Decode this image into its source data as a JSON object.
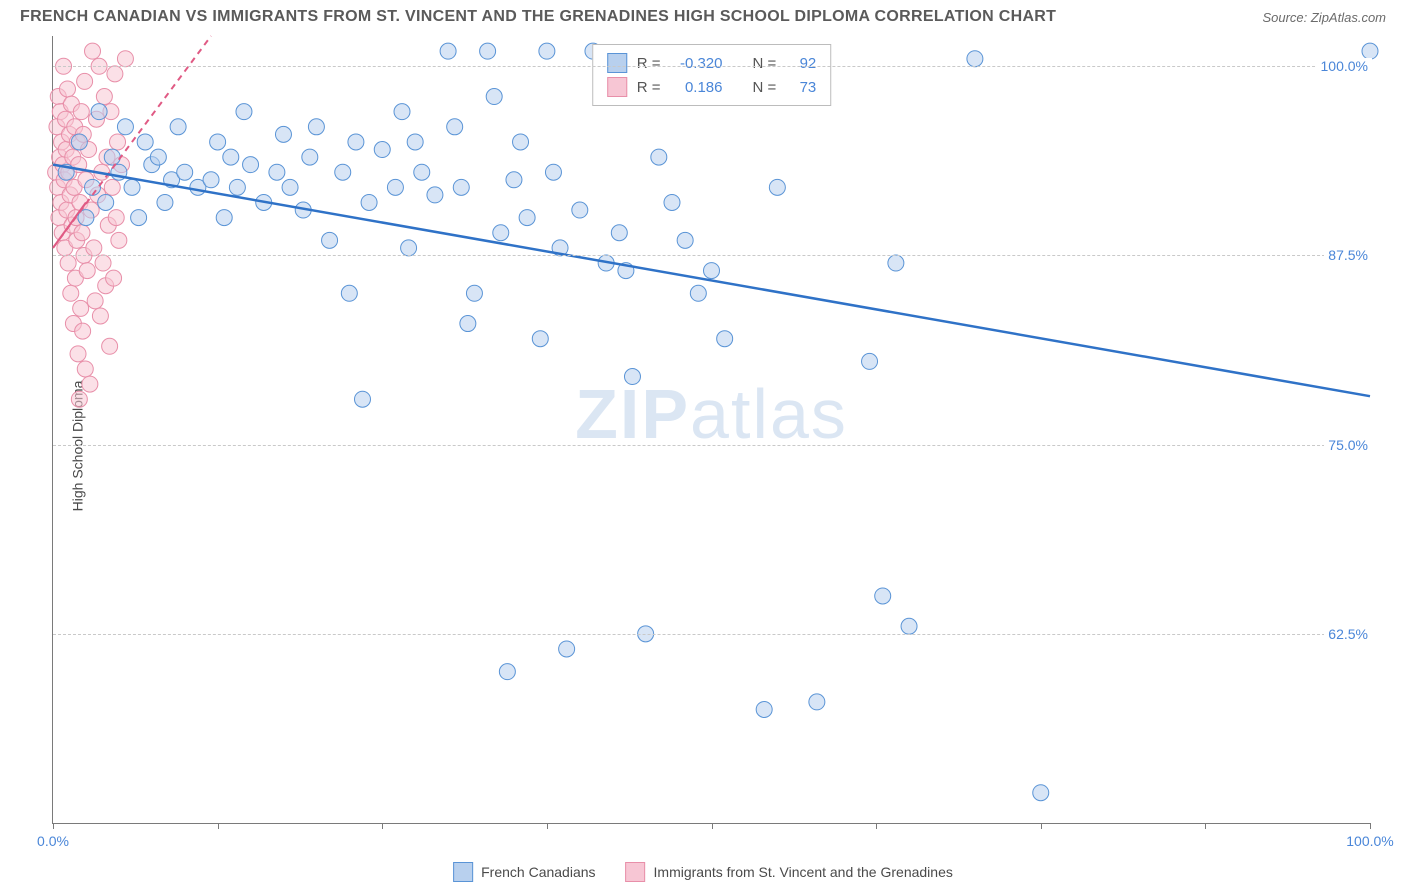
{
  "title": "FRENCH CANADIAN VS IMMIGRANTS FROM ST. VINCENT AND THE GRENADINES HIGH SCHOOL DIPLOMA CORRELATION CHART",
  "source": "Source: ZipAtlas.com",
  "y_axis_label": "High School Diploma",
  "watermark": {
    "bold": "ZIP",
    "rest": "atlas"
  },
  "colors": {
    "blue_fill": "#b8d0ee",
    "blue_stroke": "#5a94d6",
    "blue_line": "#2f72c7",
    "pink_fill": "#f7c6d4",
    "pink_stroke": "#e88fa9",
    "pink_line": "#e05a84",
    "grid": "#c9c9c9",
    "axis": "#7a7a7a",
    "tick_text": "#4a86d8",
    "title_text": "#5a5a5a",
    "watermark_color": "#dbe6f3"
  },
  "plot": {
    "xlim": [
      0,
      100
    ],
    "ylim": [
      50,
      102
    ],
    "y_gridlines": [
      62.5,
      75.0,
      87.5,
      100.0
    ],
    "y_tick_labels": [
      "62.5%",
      "75.0%",
      "87.5%",
      "100.0%"
    ],
    "x_ticks": [
      0,
      12.5,
      25,
      37.5,
      50,
      62.5,
      75,
      87.5,
      100
    ],
    "x_tick_labels": {
      "0": "0.0%",
      "100": "100.0%"
    },
    "marker_radius": 8,
    "marker_opacity": 0.55,
    "line_width_blue": 2.5,
    "line_width_pink": 2.0
  },
  "stats_legend": {
    "rows": [
      {
        "color": "blue",
        "r_label": "R =",
        "r_val": "-0.320",
        "n_label": "N =",
        "n_val": "92"
      },
      {
        "color": "pink",
        "r_label": "R =",
        "r_val": "0.186",
        "n_label": "N =",
        "n_val": "73"
      }
    ]
  },
  "bottom_legend": {
    "items": [
      {
        "color": "blue",
        "label": "French Canadians"
      },
      {
        "color": "pink",
        "label": "Immigrants from St. Vincent and the Grenadines"
      }
    ]
  },
  "series": {
    "blue_line": {
      "x1": 0,
      "y1": 93.5,
      "x2": 100,
      "y2": 78.2
    },
    "pink_line": {
      "x1": 0,
      "y1": 88.0,
      "x2": 12,
      "y2": 102.0,
      "dashed": true
    },
    "blue_points": [
      [
        1,
        93
      ],
      [
        2,
        95
      ],
      [
        2.5,
        90
      ],
      [
        3,
        92
      ],
      [
        3.5,
        97
      ],
      [
        4,
        91
      ],
      [
        4.5,
        94
      ],
      [
        5,
        93
      ],
      [
        5.5,
        96
      ],
      [
        6,
        92
      ],
      [
        6.5,
        90
      ],
      [
        7,
        95
      ],
      [
        7.5,
        93.5
      ],
      [
        8,
        94
      ],
      [
        8.5,
        91
      ],
      [
        9,
        92.5
      ],
      [
        9.5,
        96
      ],
      [
        10,
        93
      ],
      [
        11,
        92
      ],
      [
        12,
        92.5
      ],
      [
        12.5,
        95
      ],
      [
        13,
        90
      ],
      [
        13.5,
        94
      ],
      [
        14,
        92
      ],
      [
        14.5,
        97
      ],
      [
        15,
        93.5
      ],
      [
        16,
        91
      ],
      [
        17,
        93
      ],
      [
        17.5,
        95.5
      ],
      [
        18,
        92
      ],
      [
        19,
        90.5
      ],
      [
        19.5,
        94
      ],
      [
        20,
        96
      ],
      [
        21,
        88.5
      ],
      [
        22,
        93
      ],
      [
        22.5,
        85
      ],
      [
        23,
        95
      ],
      [
        23.5,
        78
      ],
      [
        24,
        91
      ],
      [
        25,
        94.5
      ],
      [
        26,
        92
      ],
      [
        26.5,
        97
      ],
      [
        27,
        88
      ],
      [
        27.5,
        95
      ],
      [
        28,
        93
      ],
      [
        29,
        91.5
      ],
      [
        30,
        101
      ],
      [
        30.5,
        96
      ],
      [
        31,
        92
      ],
      [
        31.5,
        83
      ],
      [
        32,
        85
      ],
      [
        33,
        101
      ],
      [
        33.5,
        98
      ],
      [
        34,
        89
      ],
      [
        34.5,
        60
      ],
      [
        35,
        92.5
      ],
      [
        35.5,
        95
      ],
      [
        36,
        90
      ],
      [
        37,
        82
      ],
      [
        37.5,
        101
      ],
      [
        38,
        93
      ],
      [
        38.5,
        88
      ],
      [
        39,
        61.5
      ],
      [
        40,
        90.5
      ],
      [
        41,
        101
      ],
      [
        42,
        87
      ],
      [
        43,
        89
      ],
      [
        43.5,
        86.5
      ],
      [
        44,
        79.5
      ],
      [
        45,
        62.5
      ],
      [
        46,
        94
      ],
      [
        47,
        91
      ],
      [
        48,
        88.5
      ],
      [
        49,
        85
      ],
      [
        50,
        86.5
      ],
      [
        51,
        82
      ],
      [
        54,
        57.5
      ],
      [
        55,
        92
      ],
      [
        58,
        58
      ],
      [
        62,
        80.5
      ],
      [
        63,
        65
      ],
      [
        64,
        87
      ],
      [
        65,
        63
      ],
      [
        70,
        100.5
      ],
      [
        75,
        52
      ],
      [
        100,
        101
      ]
    ],
    "pink_points": [
      [
        0.2,
        93
      ],
      [
        0.3,
        96
      ],
      [
        0.35,
        92
      ],
      [
        0.4,
        98
      ],
      [
        0.45,
        90
      ],
      [
        0.5,
        94
      ],
      [
        0.55,
        97
      ],
      [
        0.6,
        91
      ],
      [
        0.65,
        95
      ],
      [
        0.7,
        89
      ],
      [
        0.75,
        93.5
      ],
      [
        0.8,
        100
      ],
      [
        0.85,
        92.5
      ],
      [
        0.9,
        88
      ],
      [
        0.95,
        96.5
      ],
      [
        1.0,
        94.5
      ],
      [
        1.05,
        90.5
      ],
      [
        1.1,
        98.5
      ],
      [
        1.15,
        87
      ],
      [
        1.2,
        93
      ],
      [
        1.25,
        95.5
      ],
      [
        1.3,
        91.5
      ],
      [
        1.35,
        85
      ],
      [
        1.4,
        97.5
      ],
      [
        1.45,
        89.5
      ],
      [
        1.5,
        94
      ],
      [
        1.55,
        83
      ],
      [
        1.6,
        92
      ],
      [
        1.65,
        96
      ],
      [
        1.7,
        86
      ],
      [
        1.75,
        90
      ],
      [
        1.8,
        88.5
      ],
      [
        1.85,
        95
      ],
      [
        1.9,
        81
      ],
      [
        1.95,
        93.5
      ],
      [
        2.0,
        78
      ],
      [
        2.05,
        91
      ],
      [
        2.1,
        84
      ],
      [
        2.15,
        97
      ],
      [
        2.2,
        89
      ],
      [
        2.25,
        82.5
      ],
      [
        2.3,
        95.5
      ],
      [
        2.35,
        87.5
      ],
      [
        2.4,
        99
      ],
      [
        2.45,
        80
      ],
      [
        2.5,
        92.5
      ],
      [
        2.6,
        86.5
      ],
      [
        2.7,
        94.5
      ],
      [
        2.8,
        79
      ],
      [
        2.9,
        90.5
      ],
      [
        3.0,
        101
      ],
      [
        3.1,
        88
      ],
      [
        3.2,
        84.5
      ],
      [
        3.3,
        96.5
      ],
      [
        3.4,
        91.5
      ],
      [
        3.5,
        100
      ],
      [
        3.6,
        83.5
      ],
      [
        3.7,
        93
      ],
      [
        3.8,
        87
      ],
      [
        3.9,
        98
      ],
      [
        4.0,
        85.5
      ],
      [
        4.1,
        94
      ],
      [
        4.2,
        89.5
      ],
      [
        4.3,
        81.5
      ],
      [
        4.4,
        97
      ],
      [
        4.5,
        92
      ],
      [
        4.6,
        86
      ],
      [
        4.7,
        99.5
      ],
      [
        4.8,
        90
      ],
      [
        4.9,
        95
      ],
      [
        5.0,
        88.5
      ],
      [
        5.2,
        93.5
      ],
      [
        5.5,
        100.5
      ]
    ]
  }
}
